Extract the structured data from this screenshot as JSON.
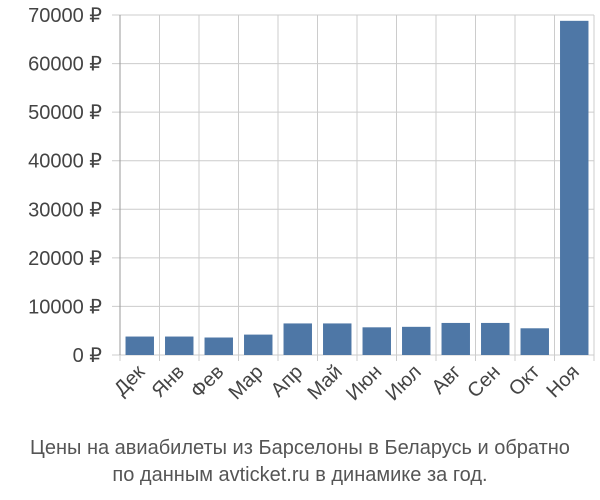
{
  "chart_data": {
    "type": "bar",
    "categories": [
      "Дек",
      "Янв",
      "Фев",
      "Мар",
      "Апр",
      "Май",
      "Июн",
      "Июл",
      "Авг",
      "Сен",
      "Окт",
      "Ноя"
    ],
    "values": [
      3800,
      3800,
      3600,
      4200,
      6500,
      6500,
      5700,
      5800,
      6600,
      6600,
      5500,
      68800
    ],
    "y_ticks": [
      0,
      10000,
      20000,
      30000,
      40000,
      50000,
      60000,
      70000
    ],
    "y_tick_labels": [
      "0 ₽",
      "10000 ₽",
      "20000 ₽",
      "30000 ₽",
      "40000 ₽",
      "50000 ₽",
      "60000 ₽",
      "70000 ₽"
    ],
    "ylim": [
      0,
      70000
    ],
    "grid": true,
    "bar_color": "#4e77a6",
    "grid_color": "#cccccc",
    "tick_label_color": "#444444"
  },
  "caption": {
    "line1": "Цены на авиабилеты из Барселоны в Беларусь и обратно",
    "line2": "по данным avticket.ru в динамике за год."
  }
}
